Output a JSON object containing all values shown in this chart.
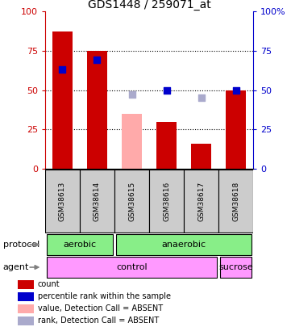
{
  "title": "GDS1448 / 259071_at",
  "samples": [
    "GSM38613",
    "GSM38614",
    "GSM38615",
    "GSM38616",
    "GSM38617",
    "GSM38618"
  ],
  "bar_values": [
    87,
    75,
    null,
    30,
    16,
    50
  ],
  "bar_color_present": "#cc0000",
  "bar_color_absent": "#ffaaaa",
  "absent_bar_values": [
    null,
    null,
    35,
    null,
    null,
    null
  ],
  "blue_dot_values": [
    63,
    69,
    null,
    50,
    null,
    50
  ],
  "blue_dot_absent_values": [
    null,
    null,
    47,
    null,
    45,
    null
  ],
  "blue_dot_color": "#0000cc",
  "blue_dot_absent_color": "#aaaacc",
  "ylim": [
    0,
    100
  ],
  "yticks": [
    0,
    25,
    50,
    75,
    100
  ],
  "left_yaxis_color": "#cc0000",
  "right_yaxis_color": "#0000cc",
  "protocol_labels": [
    [
      "aerobic",
      0,
      2
    ],
    [
      "anaerobic",
      2,
      6
    ]
  ],
  "protocol_color": "#88ee88",
  "agent_labels": [
    [
      "control",
      0,
      5
    ],
    [
      "sucrose",
      5,
      6
    ]
  ],
  "agent_color": "#ff99ff",
  "xticklabel_area_color": "#cccccc",
  "legend_colors": [
    "#cc0000",
    "#0000cc",
    "#ffaaaa",
    "#aaaacc"
  ],
  "legend_texts": [
    "count",
    "percentile rank within the sample",
    "value, Detection Call = ABSENT",
    "rank, Detection Call = ABSENT"
  ],
  "figsize": [
    3.61,
    4.05
  ],
  "dpi": 100
}
